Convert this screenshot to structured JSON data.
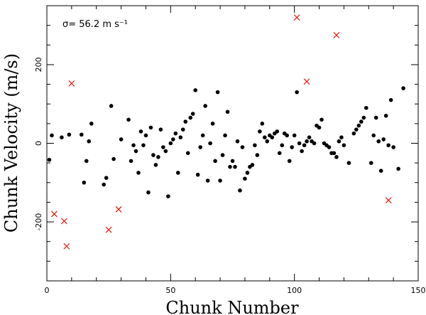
{
  "chart_data": {
    "type": "scatter",
    "title": "",
    "xlabel": "Chunk Number",
    "ylabel": "Chunk Velocity (m/s)",
    "annotation": "σ=  56.2  m s⁻¹",
    "xlim": [
      0,
      150
    ],
    "ylim": [
      -350,
      350
    ],
    "x_ticks": [
      0,
      50,
      100,
      150
    ],
    "y_ticks": [
      -200,
      0,
      200
    ],
    "grid": false,
    "series": [
      {
        "marker": "circle",
        "color": "#000000",
        "points": [
          [
            1,
            -42
          ],
          [
            2,
            20
          ],
          [
            6,
            15
          ],
          [
            9,
            22
          ],
          [
            14,
            22
          ],
          [
            15,
            -100
          ],
          [
            16,
            -45
          ],
          [
            17,
            5
          ],
          [
            18,
            50
          ],
          [
            23,
            -105
          ],
          [
            24,
            -88
          ],
          [
            26,
            95
          ],
          [
            27,
            -40
          ],
          [
            30,
            10
          ],
          [
            33,
            60
          ],
          [
            34,
            -45
          ],
          [
            35,
            -5
          ],
          [
            36,
            -20
          ],
          [
            37,
            -75
          ],
          [
            38,
            30
          ],
          [
            39,
            -5
          ],
          [
            40,
            20
          ],
          [
            41,
            -125
          ],
          [
            42,
            40
          ],
          [
            43,
            -30
          ],
          [
            44,
            -55
          ],
          [
            45,
            -35
          ],
          [
            46,
            35
          ],
          [
            47,
            -10
          ],
          [
            48,
            -20
          ],
          [
            49,
            -135
          ],
          [
            50,
            0
          ],
          [
            51,
            10
          ],
          [
            52,
            25
          ],
          [
            53,
            -75
          ],
          [
            54,
            15
          ],
          [
            55,
            35
          ],
          [
            56,
            55
          ],
          [
            57,
            -25
          ],
          [
            58,
            65
          ],
          [
            59,
            75
          ],
          [
            60,
            135
          ],
          [
            61,
            -80
          ],
          [
            62,
            -10
          ],
          [
            63,
            20
          ],
          [
            64,
            95
          ],
          [
            65,
            -95
          ],
          [
            66,
            0
          ],
          [
            67,
            50
          ],
          [
            68,
            -45
          ],
          [
            69,
            130
          ],
          [
            70,
            -95
          ],
          [
            71,
            -30
          ],
          [
            72,
            20
          ],
          [
            73,
            80
          ],
          [
            74,
            -60
          ],
          [
            75,
            -45
          ],
          [
            76,
            -60
          ],
          [
            77,
            5
          ],
          [
            78,
            -120
          ],
          [
            79,
            -10
          ],
          [
            80,
            -90
          ],
          [
            81,
            -75
          ],
          [
            82,
            -60
          ],
          [
            83,
            -55
          ],
          [
            84,
            -5
          ],
          [
            85,
            -30
          ],
          [
            86,
            30
          ],
          [
            87,
            50
          ],
          [
            88,
            15
          ],
          [
            89,
            5
          ],
          [
            90,
            20
          ],
          [
            91,
            15
          ],
          [
            92,
            25
          ],
          [
            93,
            30
          ],
          [
            94,
            -25
          ],
          [
            95,
            -5
          ],
          [
            96,
            25
          ],
          [
            97,
            20
          ],
          [
            98,
            -45
          ],
          [
            99,
            -10
          ],
          [
            100,
            20
          ],
          [
            101,
            130
          ],
          [
            102,
            0
          ],
          [
            103,
            -20
          ],
          [
            104,
            -5
          ],
          [
            105,
            5
          ],
          [
            106,
            15
          ],
          [
            107,
            5
          ],
          [
            108,
            0
          ],
          [
            109,
            45
          ],
          [
            110,
            40
          ],
          [
            111,
            60
          ],
          [
            112,
            0
          ],
          [
            113,
            -5
          ],
          [
            114,
            -10
          ],
          [
            115,
            -25
          ],
          [
            116,
            -25
          ],
          [
            117,
            -35
          ],
          [
            118,
            5
          ],
          [
            119,
            15
          ],
          [
            120,
            -5
          ],
          [
            122,
            -50
          ],
          [
            124,
            25
          ],
          [
            125,
            35
          ],
          [
            126,
            45
          ],
          [
            127,
            55
          ],
          [
            128,
            65
          ],
          [
            129,
            90
          ],
          [
            131,
            -50
          ],
          [
            132,
            20
          ],
          [
            133,
            65
          ],
          [
            134,
            5
          ],
          [
            135,
            -70
          ],
          [
            136,
            10
          ],
          [
            137,
            70
          ],
          [
            138,
            -5
          ],
          [
            139,
            110
          ],
          [
            140,
            -10
          ],
          [
            142,
            -65
          ],
          [
            144,
            140
          ]
        ]
      },
      {
        "marker": "cross",
        "color": "#e8231c",
        "points": [
          [
            3,
            -180
          ],
          [
            7,
            -198
          ],
          [
            8,
            -262
          ],
          [
            10,
            152
          ],
          [
            25,
            -220
          ],
          [
            29,
            -168
          ],
          [
            101,
            320
          ],
          [
            105,
            157
          ],
          [
            117,
            275
          ],
          [
            138,
            -145
          ]
        ]
      }
    ]
  }
}
